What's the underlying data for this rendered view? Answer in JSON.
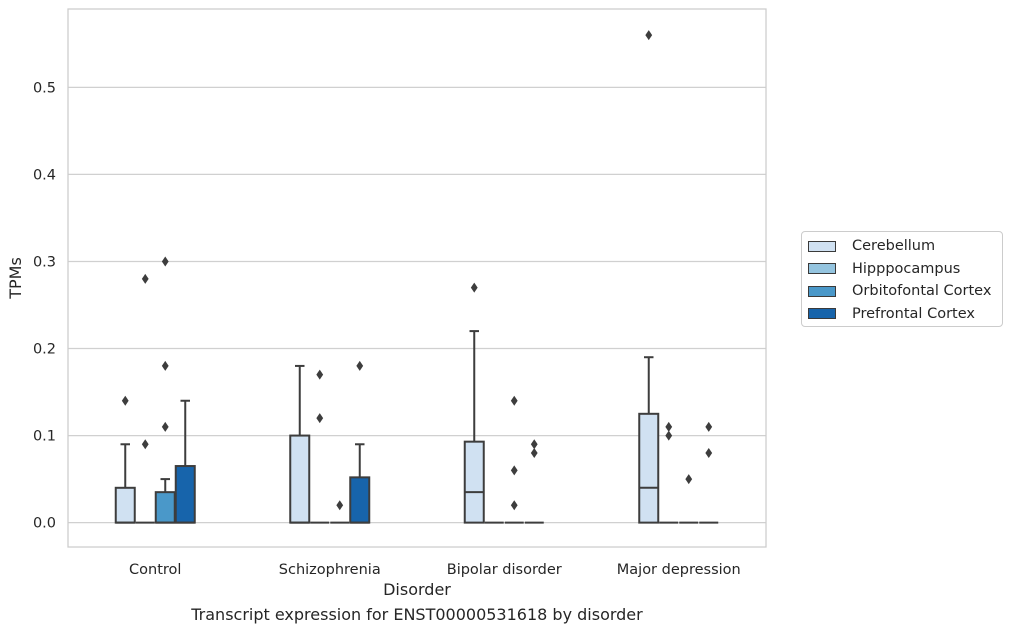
{
  "chart_data": {
    "type": "box",
    "xlabel": "Disorder",
    "ylabel": "TPMs",
    "caption": "Transcript expression for ENST00000531618 by disorder",
    "ylim": [
      -0.028,
      0.59
    ],
    "yticks": [
      0.0,
      0.1,
      0.2,
      0.3,
      0.4,
      0.5
    ],
    "ytick_labels": [
      "0.0",
      "0.1",
      "0.2",
      "0.3",
      "0.4",
      "0.5"
    ],
    "grid": true,
    "legend_position": "right",
    "categories": [
      "Control",
      "Schizophrenia",
      "Bipolar disorder",
      "Major depression"
    ],
    "series": [
      {
        "name": "Cerebellum",
        "color": "#d0e1f2",
        "boxes": [
          {
            "q1": 0.0,
            "median": 0.0,
            "q3": 0.04,
            "whisker_low": 0.0,
            "whisker_high": 0.09,
            "outliers": [
              0.14
            ]
          },
          {
            "q1": 0.0,
            "median": 0.0,
            "q3": 0.1,
            "whisker_low": 0.0,
            "whisker_high": 0.18,
            "outliers": []
          },
          {
            "q1": 0.0,
            "median": 0.035,
            "q3": 0.093,
            "whisker_low": 0.0,
            "whisker_high": 0.22,
            "outliers": [
              0.27
            ]
          },
          {
            "q1": 0.0,
            "median": 0.04,
            "q3": 0.125,
            "whisker_low": 0.0,
            "whisker_high": 0.19,
            "outliers": [
              0.56
            ]
          }
        ]
      },
      {
        "name": "Hipppocampus",
        "color": "#94c4df",
        "boxes": [
          {
            "q1": 0.0,
            "median": 0.0,
            "q3": 0.0,
            "whisker_low": 0.0,
            "whisker_high": 0.0,
            "outliers": [
              0.09,
              0.28
            ]
          },
          {
            "q1": 0.0,
            "median": 0.0,
            "q3": 0.0,
            "whisker_low": 0.0,
            "whisker_high": 0.0,
            "outliers": [
              0.12,
              0.17
            ]
          },
          {
            "q1": 0.0,
            "median": 0.0,
            "q3": 0.0,
            "whisker_low": 0.0,
            "whisker_high": 0.0,
            "outliers": []
          },
          {
            "q1": 0.0,
            "median": 0.0,
            "q3": 0.0,
            "whisker_low": 0.0,
            "whisker_high": 0.0,
            "outliers": [
              0.1,
              0.11
            ]
          }
        ]
      },
      {
        "name": "Orbitofontal Cortex",
        "color": "#4a98c9",
        "boxes": [
          {
            "q1": 0.0,
            "median": 0.0,
            "q3": 0.035,
            "whisker_low": 0.0,
            "whisker_high": 0.05,
            "outliers": [
              0.11,
              0.18,
              0.3
            ]
          },
          {
            "q1": 0.0,
            "median": 0.0,
            "q3": 0.0,
            "whisker_low": 0.0,
            "whisker_high": 0.0,
            "outliers": [
              0.02
            ]
          },
          {
            "q1": 0.0,
            "median": 0.0,
            "q3": 0.0,
            "whisker_low": 0.0,
            "whisker_high": 0.0,
            "outliers": [
              0.02,
              0.06,
              0.14
            ]
          },
          {
            "q1": 0.0,
            "median": 0.0,
            "q3": 0.0,
            "whisker_low": 0.0,
            "whisker_high": 0.0,
            "outliers": [
              0.05
            ]
          }
        ]
      },
      {
        "name": "Prefrontal Cortex",
        "color": "#1764ab",
        "boxes": [
          {
            "q1": 0.0,
            "median": 0.0,
            "q3": 0.065,
            "whisker_low": 0.0,
            "whisker_high": 0.14,
            "outliers": []
          },
          {
            "q1": 0.0,
            "median": 0.0,
            "q3": 0.052,
            "whisker_low": 0.0,
            "whisker_high": 0.09,
            "outliers": [
              0.18
            ]
          },
          {
            "q1": 0.0,
            "median": 0.0,
            "q3": 0.0,
            "whisker_low": 0.0,
            "whisker_high": 0.0,
            "outliers": [
              0.08,
              0.09
            ]
          },
          {
            "q1": 0.0,
            "median": 0.0,
            "q3": 0.0,
            "whisker_low": 0.0,
            "whisker_high": 0.0,
            "outliers": [
              0.08,
              0.11
            ]
          }
        ]
      }
    ]
  }
}
